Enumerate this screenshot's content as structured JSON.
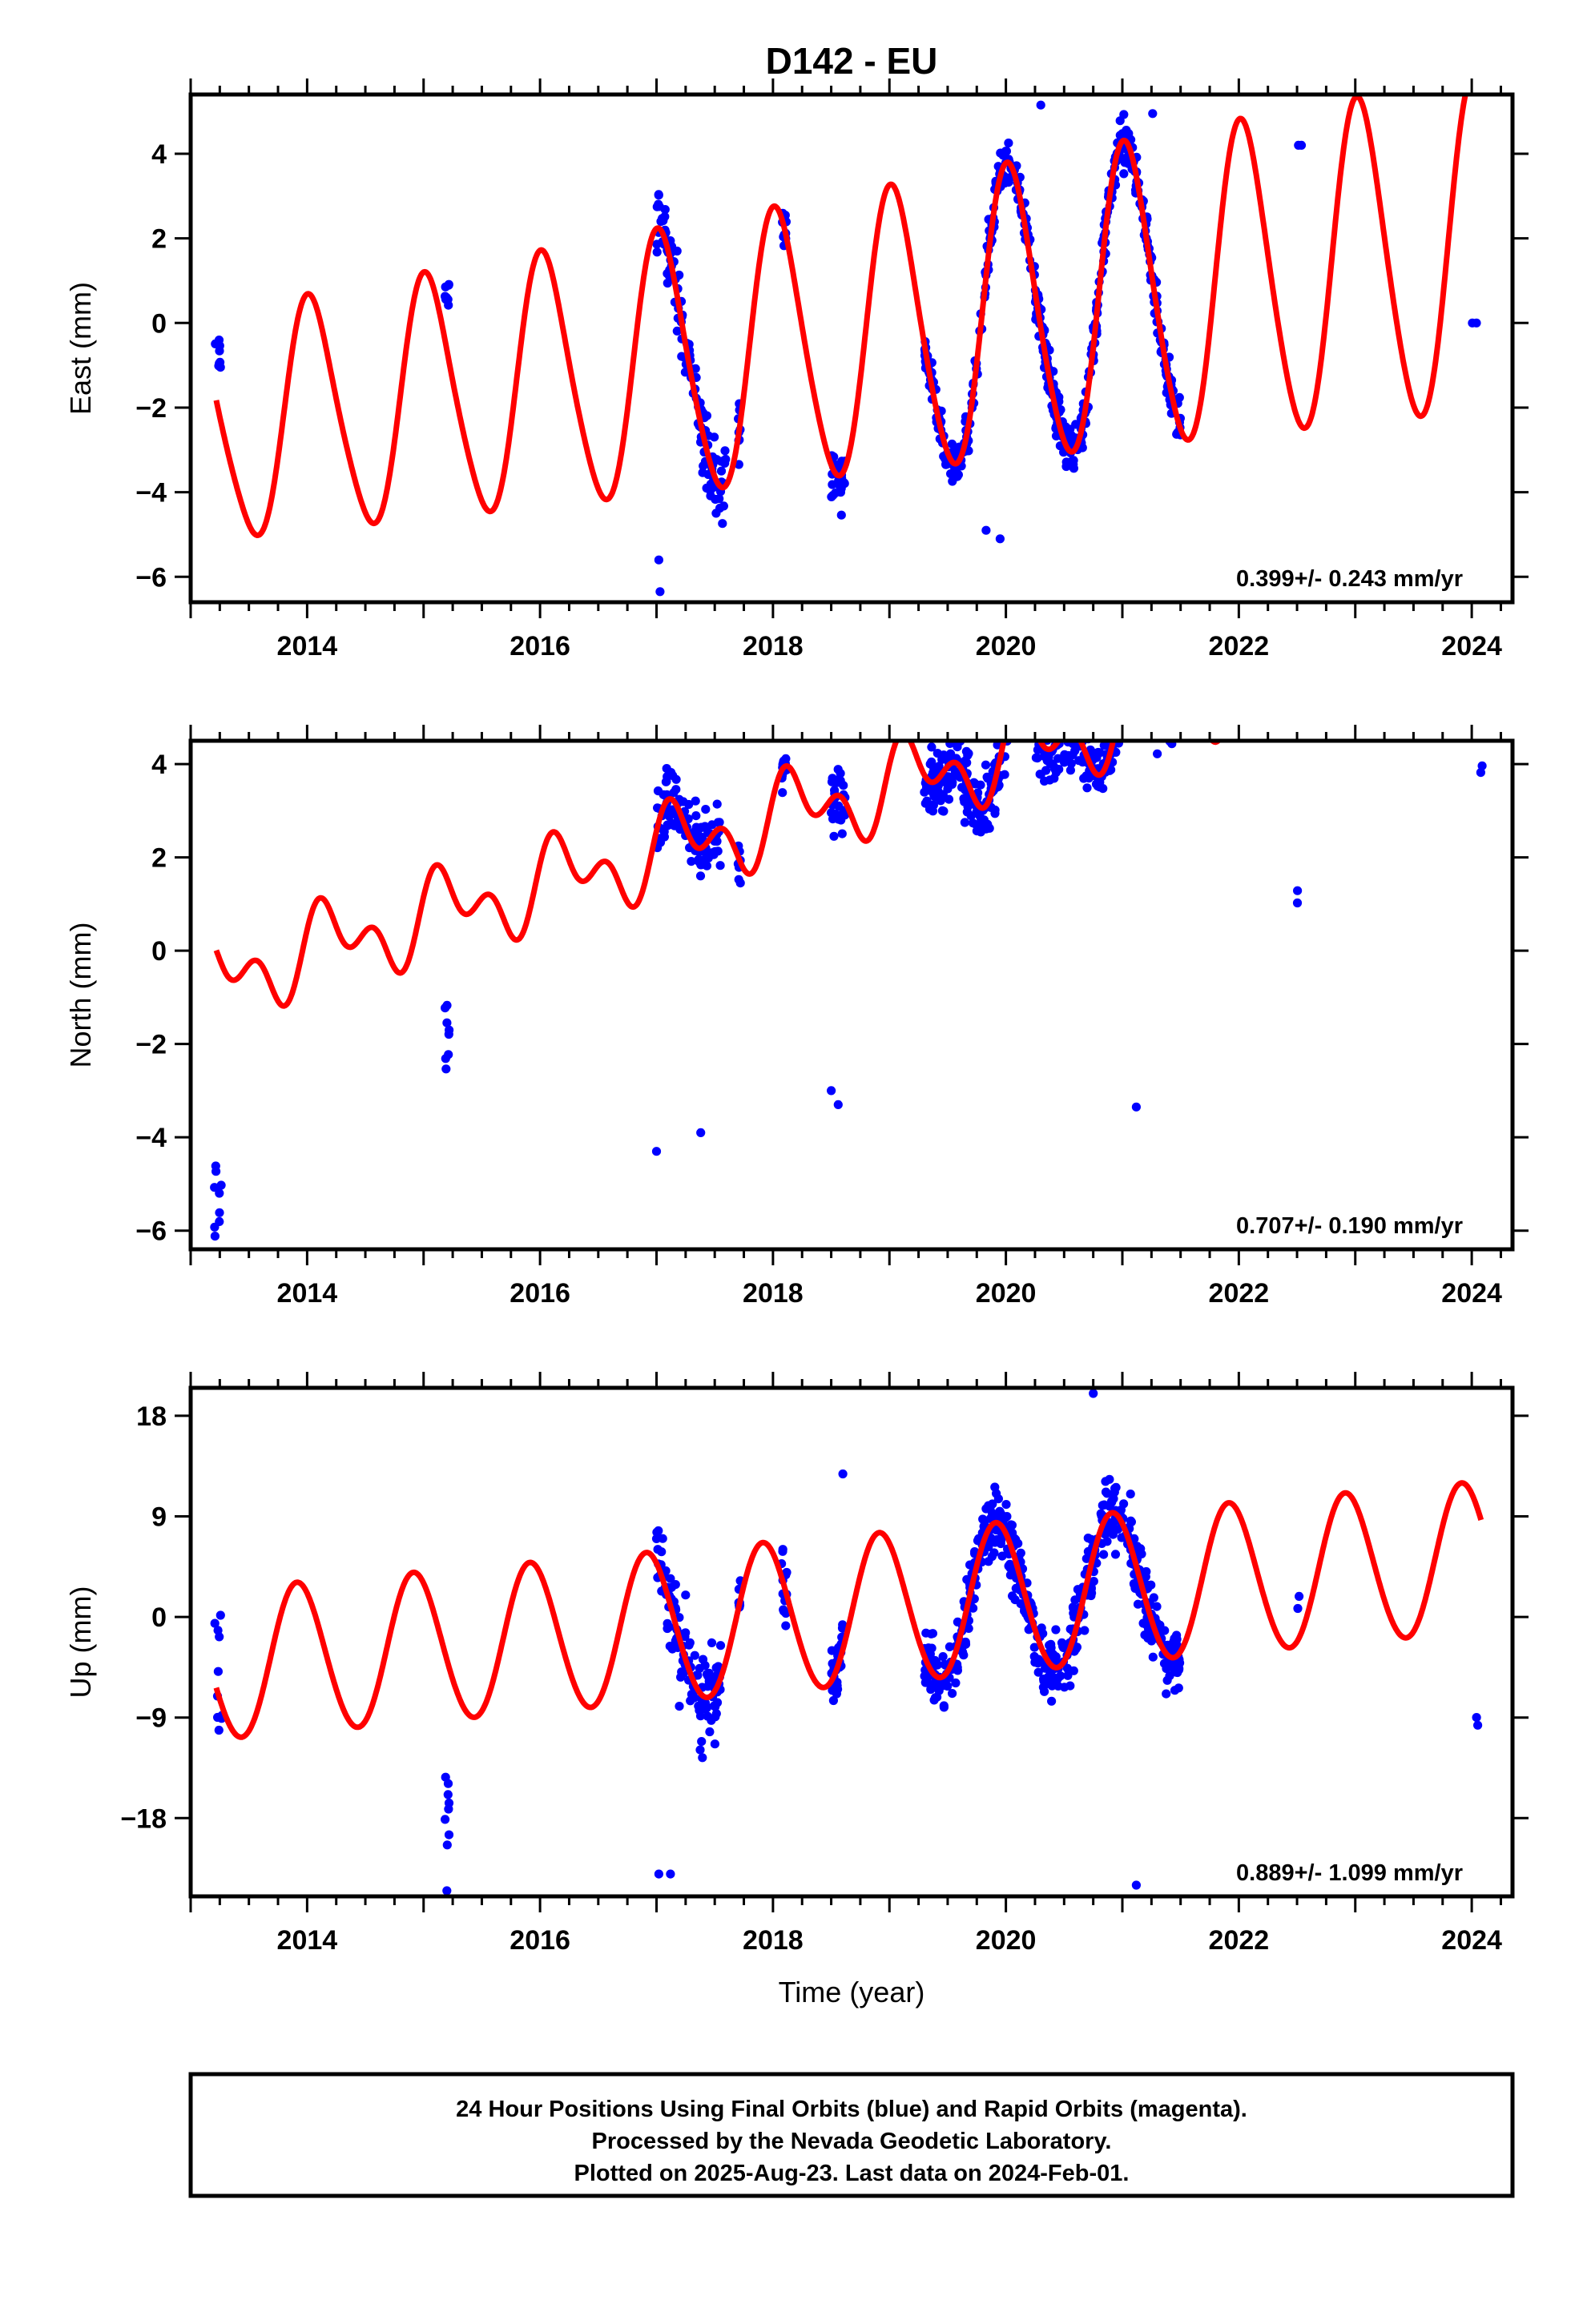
{
  "figure": {
    "title": "D142 - EU",
    "xlabel": "Time (year)",
    "footer": [
      "24 Hour Positions Using Final Orbits (blue) and Rapid Orbits (magenta).",
      "Processed by the Nevada Geodetic Laboratory.",
      "Plotted on 2025-Aug-23. Last data on 2024-Feb-01."
    ],
    "colors": {
      "observations": "#0000ff",
      "model": "#ff0000",
      "frame": "#000000"
    }
  },
  "chart_data": [
    {
      "type": "scatter",
      "component": "East",
      "ylabel": "East (mm)",
      "rate_label": "0.399+/- 0.243 mm/yr",
      "xlim": [
        2013.0,
        2024.35
      ],
      "ylim": [
        -6.6,
        5.4
      ],
      "xticks": [
        2014,
        2016,
        2018,
        2020,
        2022,
        2024
      ],
      "yticks": [
        -6,
        -4,
        -2,
        0,
        2,
        4
      ],
      "series": [
        {
          "kind": "points",
          "clusters": [
            {
              "x": [
                2013.2,
                2013.27
              ],
              "center": [
                -1.2,
                -0.4
              ],
              "spread": 1.0,
              "n": 8
            },
            {
              "x": [
                2015.18,
                2015.22
              ],
              "center": [
                0.3,
                1.0
              ],
              "spread": 1.0,
              "n": 8
            },
            {
              "x": [
                2017.0,
                2017.6
              ],
              "follow": true,
              "spread": 1.4,
              "n": 120
            },
            {
              "x": [
                2017.7,
                2017.72
              ],
              "follow": true,
              "spread": 1.0,
              "n": 8
            },
            {
              "x": [
                2018.07,
                2018.12
              ],
              "follow": true,
              "spread": 0.8,
              "n": 12
            },
            {
              "x": [
                2018.5,
                2018.62
              ],
              "follow": true,
              "spread": 1.0,
              "n": 30
            },
            {
              "x": [
                2019.3,
                2021.5
              ],
              "follow": true,
              "spread": 0.9,
              "n": 520
            },
            {
              "x": [
                2022.45,
                2022.55
              ],
              "center": [
                4.2,
                4.2
              ],
              "spread": 0.1,
              "n": 2
            },
            {
              "x": [
                2024.0,
                2024.1
              ],
              "center": [
                0.0,
                0.0
              ],
              "spread": 0.5,
              "n": 2
            }
          ],
          "outliers": [
            [
              2017.02,
              -5.6
            ],
            [
              2017.03,
              -6.35
            ],
            [
              2020.3,
              5.15
            ],
            [
              2021.26,
              4.95
            ],
            [
              2019.95,
              -5.1
            ],
            [
              2019.83,
              -4.9
            ]
          ]
        },
        {
          "kind": "model",
          "trend": 0.399,
          "offset": -2.63,
          "amp_annual_base": 2.6,
          "amp_annual_slope": 0.12,
          "amp_semi": 0.35,
          "phase": 1.35,
          "x": [
            2013.22,
            2024.08
          ]
        }
      ]
    },
    {
      "type": "scatter",
      "component": "North",
      "ylabel": "North (mm)",
      "rate_label": "0.707+/- 0.190 mm/yr",
      "xlim": [
        2013.0,
        2024.35
      ],
      "ylim": [
        -6.4,
        4.5
      ],
      "xticks": [
        2014,
        2016,
        2018,
        2020,
        2022,
        2024
      ],
      "yticks": [
        -6,
        -4,
        -2,
        0,
        2,
        4
      ],
      "series": [
        {
          "kind": "points",
          "clusters": [
            {
              "x": [
                2013.2,
                2013.27
              ],
              "center": [
                -6.2,
                -4.6
              ],
              "spread": 0.6,
              "n": 9
            },
            {
              "x": [
                2015.18,
                2015.22
              ],
              "center": [
                -2.8,
                -1.1
              ],
              "spread": 0.6,
              "n": 8
            },
            {
              "x": [
                2017.0,
                2017.55
              ],
              "follow": true,
              "spread": 1.1,
              "n": 110
            },
            {
              "x": [
                2017.7,
                2017.72
              ],
              "follow": true,
              "spread": 0.6,
              "n": 8
            },
            {
              "x": [
                2018.07,
                2018.12
              ],
              "follow": true,
              "spread": 0.9,
              "n": 14
            },
            {
              "x": [
                2018.5,
                2018.62
              ],
              "follow": true,
              "spread": 1.2,
              "n": 30
            },
            {
              "x": [
                2019.3,
                2021.5
              ],
              "follow": true,
              "spread": 1.2,
              "n": 520
            },
            {
              "x": [
                2022.45,
                2022.55
              ],
              "center": [
                1.0,
                1.45
              ],
              "spread": 0.1,
              "n": 2
            },
            {
              "x": [
                2024.0,
                2024.1
              ],
              "center": [
                3.8,
                4.2
              ],
              "spread": 0.1,
              "n": 2
            }
          ],
          "outliers": [
            [
              2017.0,
              -4.3
            ],
            [
              2017.38,
              -3.9
            ],
            [
              2018.5,
              -3.0
            ],
            [
              2018.56,
              -3.3
            ],
            [
              2019.42,
              3.35
            ],
            [
              2021.3,
              4.22
            ],
            [
              2021.12,
              -3.35
            ]
          ]
        },
        {
          "kind": "model",
          "trend": 0.707,
          "offset": -0.72,
          "amp_annual_base": 0.65,
          "amp_annual_slope": 0.0,
          "amp_semi": 0.55,
          "phase": 0.3,
          "x": [
            2013.22,
            2024.08
          ]
        }
      ]
    },
    {
      "type": "scatter",
      "component": "Up",
      "ylabel": "Up (mm)",
      "rate_label": "0.889+/- 1.099 mm/yr",
      "xlim": [
        2013.0,
        2024.35
      ],
      "ylim": [
        -25.0,
        20.5
      ],
      "xticks": [
        2014,
        2016,
        2018,
        2020,
        2022,
        2024
      ],
      "yticks": [
        -18,
        -9,
        0,
        9,
        18
      ],
      "ytick_labels": [
        "−18",
        "−9",
        "0",
        "9",
        "18"
      ],
      "series": [
        {
          "kind": "points",
          "clusters": [
            {
              "x": [
                2013.2,
                2013.27
              ],
              "center": [
                -10.5,
                0.5
              ],
              "spread": 2.0,
              "n": 10
            },
            {
              "x": [
                2015.18,
                2015.22
              ],
              "center": [
                -21.0,
                -14.0
              ],
              "spread": 1.5,
              "n": 8
            },
            {
              "x": [
                2017.0,
                2017.55
              ],
              "follow": true,
              "spread": 7.0,
              "n": 120
            },
            {
              "x": [
                2017.7,
                2017.72
              ],
              "follow": true,
              "spread": 3.0,
              "n": 8
            },
            {
              "x": [
                2018.07,
                2018.12
              ],
              "follow": true,
              "spread": 5.5,
              "n": 16
            },
            {
              "x": [
                2018.5,
                2018.62
              ],
              "follow": true,
              "spread": 4.0,
              "n": 30
            },
            {
              "x": [
                2019.3,
                2021.5
              ],
              "follow": true,
              "spread": 5.5,
              "n": 520
            },
            {
              "x": [
                2022.45,
                2022.55
              ],
              "center": [
                0.2,
                3.5
              ],
              "spread": 0.1,
              "n": 2
            },
            {
              "x": [
                2024.0,
                2024.1
              ],
              "center": [
                -11.5,
                -4.0
              ],
              "spread": 0.1,
              "n": 2
            }
          ],
          "outliers": [
            [
              2015.2,
              -24.5
            ],
            [
              2017.0,
              7.0
            ],
            [
              2017.12,
              -23.0
            ],
            [
              2017.02,
              -23.0
            ],
            [
              2020.75,
              20.0
            ],
            [
              2021.12,
              -24.0
            ],
            [
              2018.6,
              12.8
            ],
            [
              2021.07,
              11.0
            ]
          ]
        },
        {
          "kind": "model",
          "trend": 0.889,
          "offset": -4.6,
          "amp_annual_base": 6.7,
          "amp_annual_slope": 0.0,
          "amp_semi": 0.3,
          "phase": 2.05,
          "x": [
            2013.22,
            2024.08
          ]
        }
      ]
    }
  ]
}
